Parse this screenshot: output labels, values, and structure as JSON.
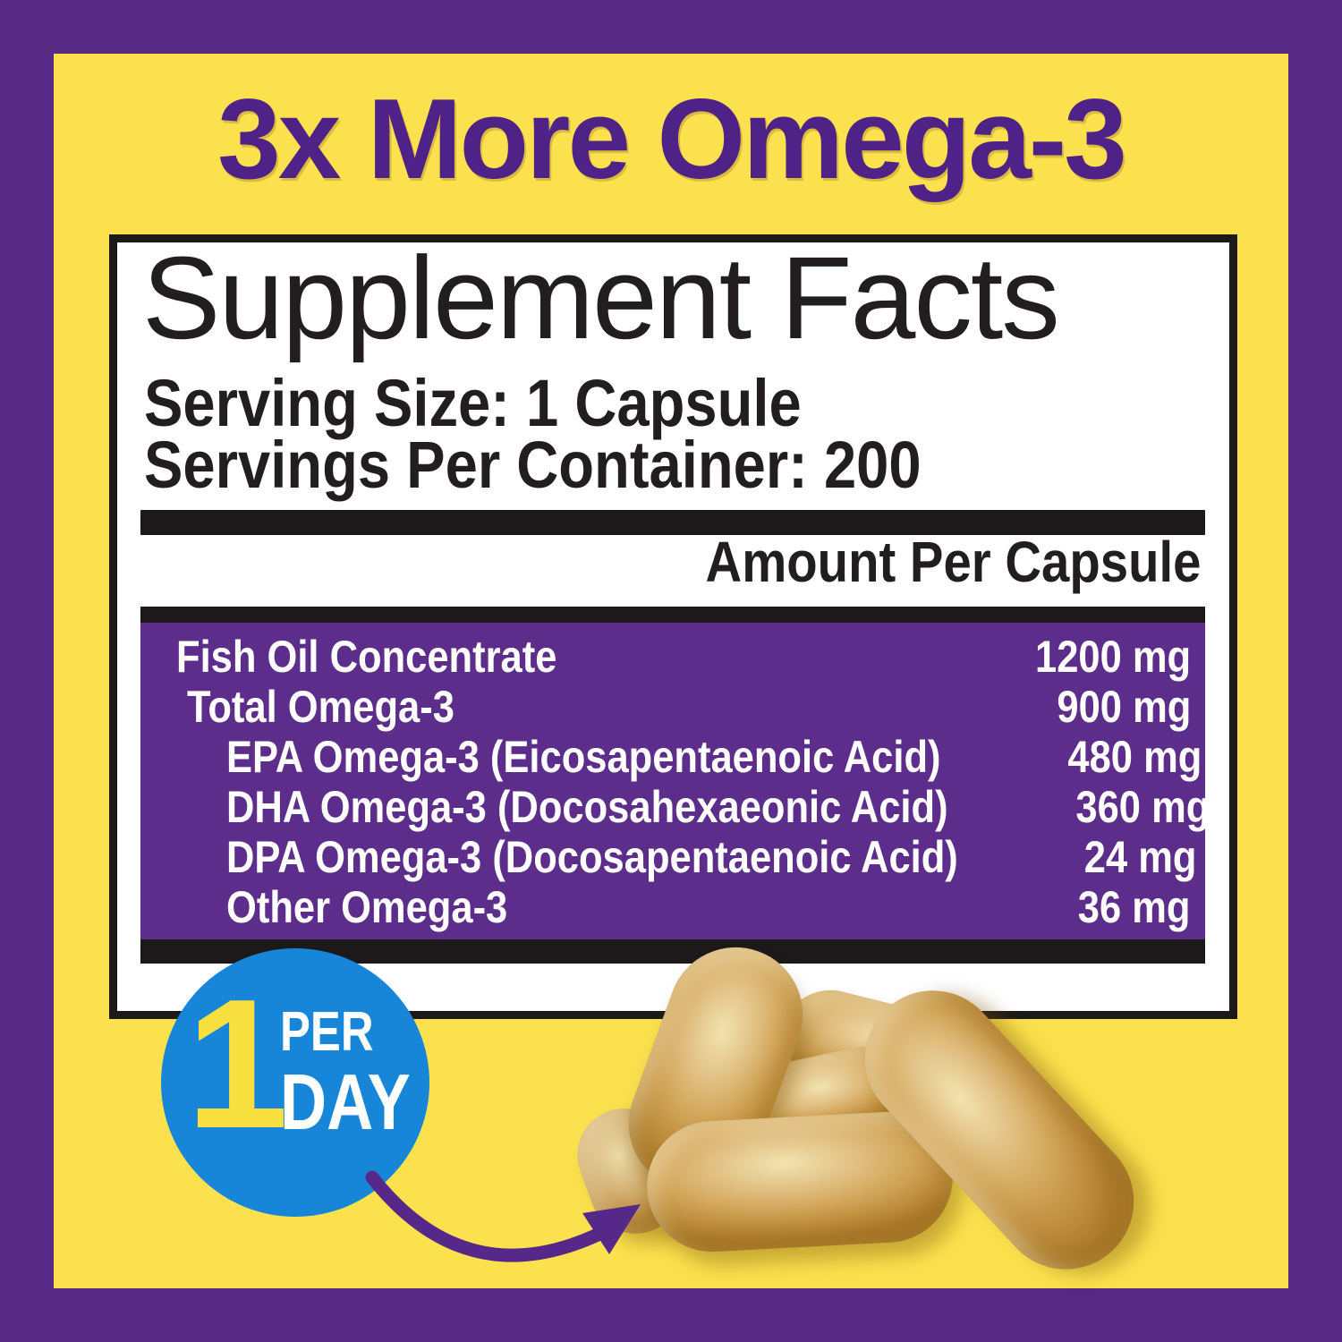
{
  "headline": "3x More Omega-3",
  "panel": {
    "title": "Supplement Facts",
    "serving_size": "Serving Size: 1 Capsule",
    "servings_per_container": "Servings Per Container: 200",
    "amount_header": "Amount Per Capsule",
    "rows": [
      {
        "label": "Fish Oil Concentrate",
        "value": "1200 mg",
        "indent": 0
      },
      {
        "label": "Total Omega-3",
        "value": "900 mg",
        "indent": 1
      },
      {
        "label": "EPA Omega-3 (Eicosapentaenoic Acid)",
        "value": "480 mg",
        "indent": 2
      },
      {
        "label": "DHA Omega-3 (Docosahexaeonic Acid)",
        "value": "360 mg",
        "indent": 2
      },
      {
        "label": "DPA Omega-3 (Docosapentaenoic Acid)",
        "value": "24 mg",
        "indent": 2
      },
      {
        "label": "Other Omega-3",
        "value": "36 mg",
        "indent": 2
      }
    ]
  },
  "badge": {
    "number": "1",
    "per": "PER",
    "day": "DAY"
  },
  "colors": {
    "frame_purple": "#572a85",
    "yellow": "#fbe14e",
    "headline_purple": "#4e2287",
    "table_purple": "#5d2d8c",
    "badge_blue": "#1886d8",
    "badge_number_yellow": "#f7e03f",
    "bar_black": "#1d191a",
    "text_black": "#221e1f",
    "arrow_purple": "#55288a",
    "capsule_gold": "#d3a75c"
  }
}
